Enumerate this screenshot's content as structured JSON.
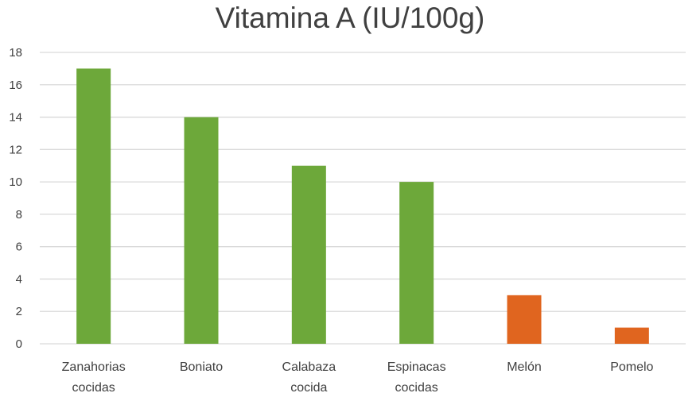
{
  "chart_data": {
    "type": "bar",
    "title": "Vitamina A (IU/100g)",
    "xlabel": "",
    "ylabel": "",
    "ylim": [
      0,
      18
    ],
    "yticks": [
      0,
      2,
      4,
      6,
      8,
      10,
      12,
      14,
      16,
      18
    ],
    "grid": true,
    "categories": [
      [
        "Zanahorias",
        "cocidas"
      ],
      [
        "Boniato"
      ],
      [
        "Calabaza",
        "cocida"
      ],
      [
        "Espinacas",
        "cocidas"
      ],
      [
        "Melón"
      ],
      [
        "Pomelo"
      ]
    ],
    "values": [
      17,
      14,
      11,
      10,
      3,
      1
    ],
    "colors": [
      "#6DA83A",
      "#6DA83A",
      "#6DA83A",
      "#6DA83A",
      "#E0651F",
      "#E0651F"
    ]
  }
}
